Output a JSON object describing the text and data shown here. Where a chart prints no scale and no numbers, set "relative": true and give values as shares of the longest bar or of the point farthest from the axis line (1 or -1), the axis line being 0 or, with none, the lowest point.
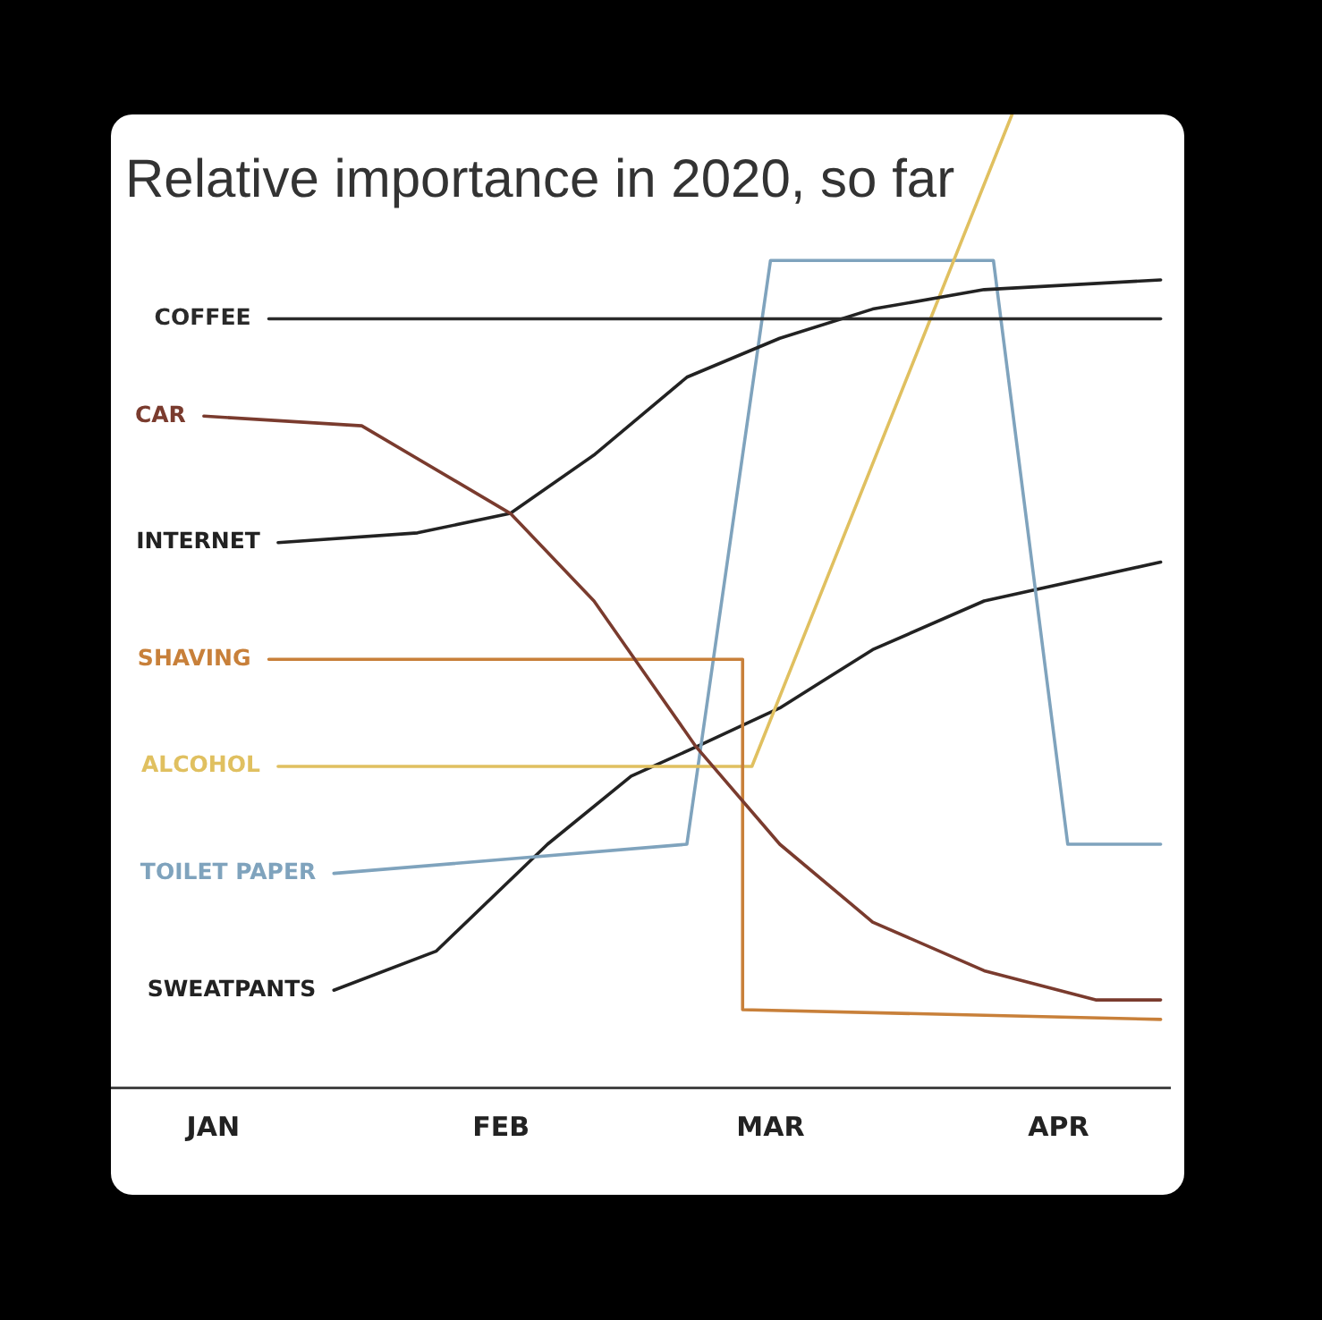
{
  "chart_data": {
    "type": "line",
    "title": "Relative importance in 2020, so far",
    "relative": true,
    "grid": false,
    "legend": false,
    "marker": "none",
    "xlim": [
      "2019-12-21",
      "2020-04-13"
    ],
    "xticks": [
      {
        "value": "2020-01-01",
        "label": "JAN"
      },
      {
        "value": "2020-02-01",
        "label": "FEB"
      },
      {
        "value": "2020-03-01",
        "label": "MAR"
      },
      {
        "value": "2020-04-01",
        "label": "APR"
      }
    ],
    "series": [
      {
        "name": "COFFEE",
        "color": "#2a2a2a",
        "x": [
          "2020-01-07",
          "2020-04-12"
        ],
        "values": [
          0.79,
          0.79
        ]
      },
      {
        "name": "CAR",
        "color": "#7a3b2e",
        "x": [
          "2019-12-31",
          "2020-01-17",
          "2020-02-02",
          "2020-02-11",
          "2020-02-22",
          "2020-03-02",
          "2020-03-12",
          "2020-03-24",
          "2020-04-05",
          "2020-04-12"
        ],
        "values": [
          0.69,
          0.68,
          0.59,
          0.5,
          0.35,
          0.25,
          0.17,
          0.12,
          0.09,
          0.09
        ]
      },
      {
        "name": "INTERNET",
        "color": "#222222",
        "x": [
          "2020-01-08",
          "2020-01-23",
          "2020-02-02",
          "2020-02-11",
          "2020-02-21",
          "2020-03-02",
          "2020-03-12",
          "2020-03-24",
          "2020-04-12"
        ],
        "values": [
          0.56,
          0.57,
          0.59,
          0.65,
          0.73,
          0.77,
          0.8,
          0.82,
          0.83
        ]
      },
      {
        "name": "SHAVING",
        "color": "#c8803a",
        "x": [
          "2020-01-07",
          "2020-02-27",
          "2020-02-27",
          "2020-04-12"
        ],
        "values": [
          0.44,
          0.44,
          0.08,
          0.07
        ]
      },
      {
        "name": "ALCOHOL",
        "color": "#e0c060",
        "x": [
          "2020-01-08",
          "2020-02-28",
          "2020-03-27"
        ],
        "values": [
          0.33,
          0.33,
          1
        ]
      },
      {
        "name": "TOILET PAPER",
        "color": "#7fa3bd",
        "x": [
          "2020-01-14",
          "2020-02-21",
          "2020-03-01",
          "2020-03-25",
          "2020-04-02",
          "2020-04-12"
        ],
        "values": [
          0.22,
          0.25,
          0.85,
          0.85,
          0.25,
          0.25
        ]
      },
      {
        "name": "SWEATPANTS",
        "color": "#222222",
        "x": [
          "2020-01-14",
          "2020-01-25",
          "2020-02-06",
          "2020-02-15",
          "2020-02-22",
          "2020-03-02",
          "2020-03-12",
          "2020-03-24",
          "2020-04-12"
        ],
        "values": [
          0.1,
          0.14,
          0.25,
          0.32,
          0.35,
          0.39,
          0.45,
          0.5,
          0.54
        ]
      }
    ]
  }
}
